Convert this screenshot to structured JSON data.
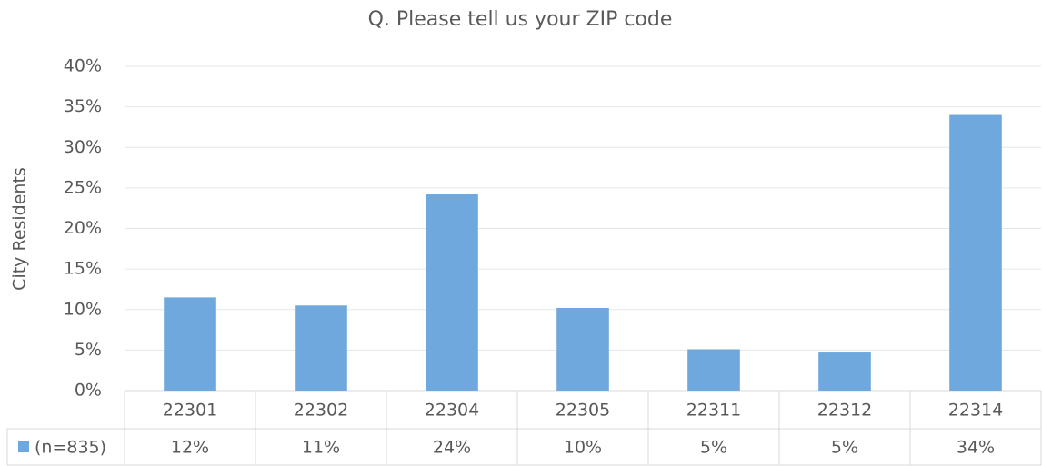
{
  "chart_data": {
    "type": "bar",
    "title": "Q. Please tell us your ZIP code",
    "y_label": "City Residents",
    "categories": [
      "22301",
      "22302",
      "22304",
      "22305",
      "22311",
      "22312",
      "22314"
    ],
    "series": [
      {
        "name": "(n=835)",
        "color": "#6fa8dc",
        "values": [
          11.5,
          10.5,
          24.2,
          10.2,
          5.1,
          4.7,
          34
        ],
        "value_labels": [
          "12%",
          "11%",
          "24%",
          "10%",
          "5%",
          "5%",
          "34%"
        ]
      }
    ],
    "ylim": [
      0,
      40
    ],
    "yticks": [
      {
        "value": 0,
        "label": "0%"
      },
      {
        "value": 5,
        "label": "5%"
      },
      {
        "value": 10,
        "label": "10%"
      },
      {
        "value": 15,
        "label": "15%"
      },
      {
        "value": 20,
        "label": "20%"
      },
      {
        "value": 25,
        "label": "25%"
      },
      {
        "value": 30,
        "label": "30%"
      },
      {
        "value": 35,
        "label": "35%"
      },
      {
        "value": 40,
        "label": "40%"
      }
    ],
    "grid": true
  }
}
